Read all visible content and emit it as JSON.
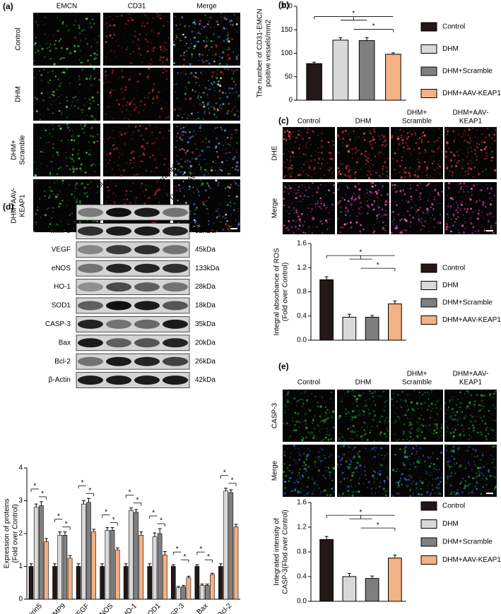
{
  "panels": {
    "a": {
      "label": "(a)",
      "columns": [
        "EMCN",
        "CD31",
        "Merge"
      ],
      "rows": [
        [
          "Control"
        ],
        [
          "DHM"
        ],
        [
          "DHM+",
          "Scramble"
        ],
        [
          "DHM+AAV-",
          "KEAP1"
        ]
      ]
    },
    "b": {
      "label": "(b)"
    },
    "c": {
      "label": "(c)",
      "columns": [
        [
          "Control"
        ],
        [
          "DHM"
        ],
        [
          "DHM+",
          "Scramble"
        ],
        [
          "DHM+AAV-",
          "KEAP1"
        ]
      ],
      "rows": [
        "DHE",
        "Merge"
      ]
    },
    "d": {
      "label": "(d)",
      "lanes": [
        "Control",
        "DHM",
        "DHM+Scramble",
        "DHM+AAV-KEAP1"
      ],
      "proteins": [
        "Cadherin 5",
        "MMP9",
        "VEGF",
        "eNOS",
        "HO-1",
        "SOD1",
        "CASP-3",
        "Bax",
        "Bcl-2",
        "β-Actin"
      ],
      "sizes": [
        "115kDa",
        "92kDa",
        "45kDa",
        "133kDa",
        "28kDa",
        "18kDa",
        "35kDa",
        "20kDa",
        "26kDa",
        "42kDa"
      ]
    },
    "e": {
      "label": "(e)",
      "columns": [
        [
          "Control"
        ],
        [
          "DHM"
        ],
        [
          "DHM+",
          "Scramble"
        ],
        [
          "DHM+AAV-",
          "KEAP1"
        ]
      ],
      "rows": [
        "CASP-3",
        "Merge"
      ]
    }
  },
  "chart_data": [
    {
      "type": "bar",
      "categories": [
        "Control",
        "DHM",
        "DHM+Scramble",
        "DHM+AAV-KEAP1"
      ],
      "colors": [
        "#231815",
        "#d9d9d9",
        "#7f7f7f",
        "#f4b183"
      ],
      "values": [
        78,
        128,
        127,
        98
      ],
      "errors": [
        3,
        5,
        6,
        3
      ],
      "ylim": [
        0,
        200
      ],
      "yticks": [
        0,
        50,
        100,
        150,
        200
      ],
      "y_label": [
        "The number of CD31-EMCN",
        "positive vessels/mm2"
      ],
      "annotations": [
        "*",
        "*"
      ],
      "legend": "right"
    },
    {
      "type": "bar",
      "categories": [
        "Control",
        "DHM",
        "DHM+Scramble",
        "DHM+AAV-KEAP1"
      ],
      "colors": [
        "#231815",
        "#d9d9d9",
        "#7f7f7f",
        "#f4b183"
      ],
      "values": [
        1.0,
        0.38,
        0.38,
        0.6
      ],
      "errors": [
        0.05,
        0.05,
        0.03,
        0.05
      ],
      "ylim": [
        0,
        1.6
      ],
      "yticks": [
        {
          "value": 0,
          "label": "0.0"
        },
        0.4,
        0.8,
        1.2,
        1.6
      ],
      "y_label": [
        "Integral absorbance of ROS",
        "(Fold over Control)"
      ],
      "annotations": [
        "*",
        "*"
      ],
      "legend": "right"
    },
    {
      "type": "bar",
      "categories": [
        "Control",
        "DHM",
        "DHM+Scramble",
        "DHM+AAV-KEAP1"
      ],
      "colors": [
        "#231815",
        "#d9d9d9",
        "#7f7f7f",
        "#f4b183"
      ],
      "values": [
        1.0,
        0.4,
        0.37,
        0.7
      ],
      "errors": [
        0.05,
        0.05,
        0.04,
        0.05
      ],
      "ylim": [
        0,
        1.6
      ],
      "yticks": [
        {
          "value": 0,
          "label": "0.0"
        },
        0.4,
        0.8,
        1.2,
        1.6
      ],
      "y_label": [
        "Integrated intensity of",
        "CASP-3(Flod over Control)"
      ],
      "annotations": [
        "*",
        "*"
      ],
      "legend": "right"
    },
    {
      "type": "grouped_bar",
      "categories": [
        "Cadherin5",
        "MMP9",
        "VEGF",
        "eNOS",
        "HO-1",
        "SOD1",
        "CASP-3",
        "Bax",
        "Bcl-2"
      ],
      "series": [
        {
          "color": "#231815",
          "values": [
            1.0,
            1.0,
            1.0,
            1.0,
            1.0,
            1.0,
            1.0,
            1.0,
            1.0
          ],
          "errors": [
            0.08,
            0.08,
            0.08,
            0.08,
            0.08,
            0.08,
            0.05,
            0.05,
            0.08
          ]
        },
        {
          "color": "#d9d9d9",
          "values": [
            2.8,
            1.95,
            2.9,
            2.1,
            2.7,
            1.9,
            0.35,
            0.42,
            3.3
          ],
          "errors": [
            0.1,
            0.1,
            0.1,
            0.08,
            0.08,
            0.12,
            0.04,
            0.04,
            0.08
          ]
        },
        {
          "color": "#7f7f7f",
          "values": [
            2.85,
            1.95,
            2.95,
            2.1,
            2.65,
            2.0,
            0.38,
            0.42,
            3.25
          ],
          "errors": [
            0.12,
            0.1,
            0.12,
            0.08,
            0.08,
            0.15,
            0.04,
            0.04,
            0.08
          ]
        },
        {
          "color": "#f4b183",
          "values": [
            1.75,
            1.25,
            2.05,
            1.5,
            1.95,
            1.35,
            0.65,
            0.75,
            2.2
          ],
          "errors": [
            0.1,
            0.08,
            0.08,
            0.06,
            0.1,
            0.1,
            0.05,
            0.04,
            0.08
          ]
        }
      ],
      "ylim": [
        0,
        4
      ],
      "yticks": [
        0,
        1,
        2,
        3,
        4
      ],
      "y_label": [
        "Expression of  proteins",
        "(Fold over Control)"
      ],
      "annotations": [
        "*",
        "*",
        "*",
        "*",
        "*",
        "*",
        "*",
        "*",
        "*",
        "*",
        "*",
        "*",
        "*",
        "*",
        "*",
        "*",
        "*",
        "*"
      ]
    }
  ]
}
